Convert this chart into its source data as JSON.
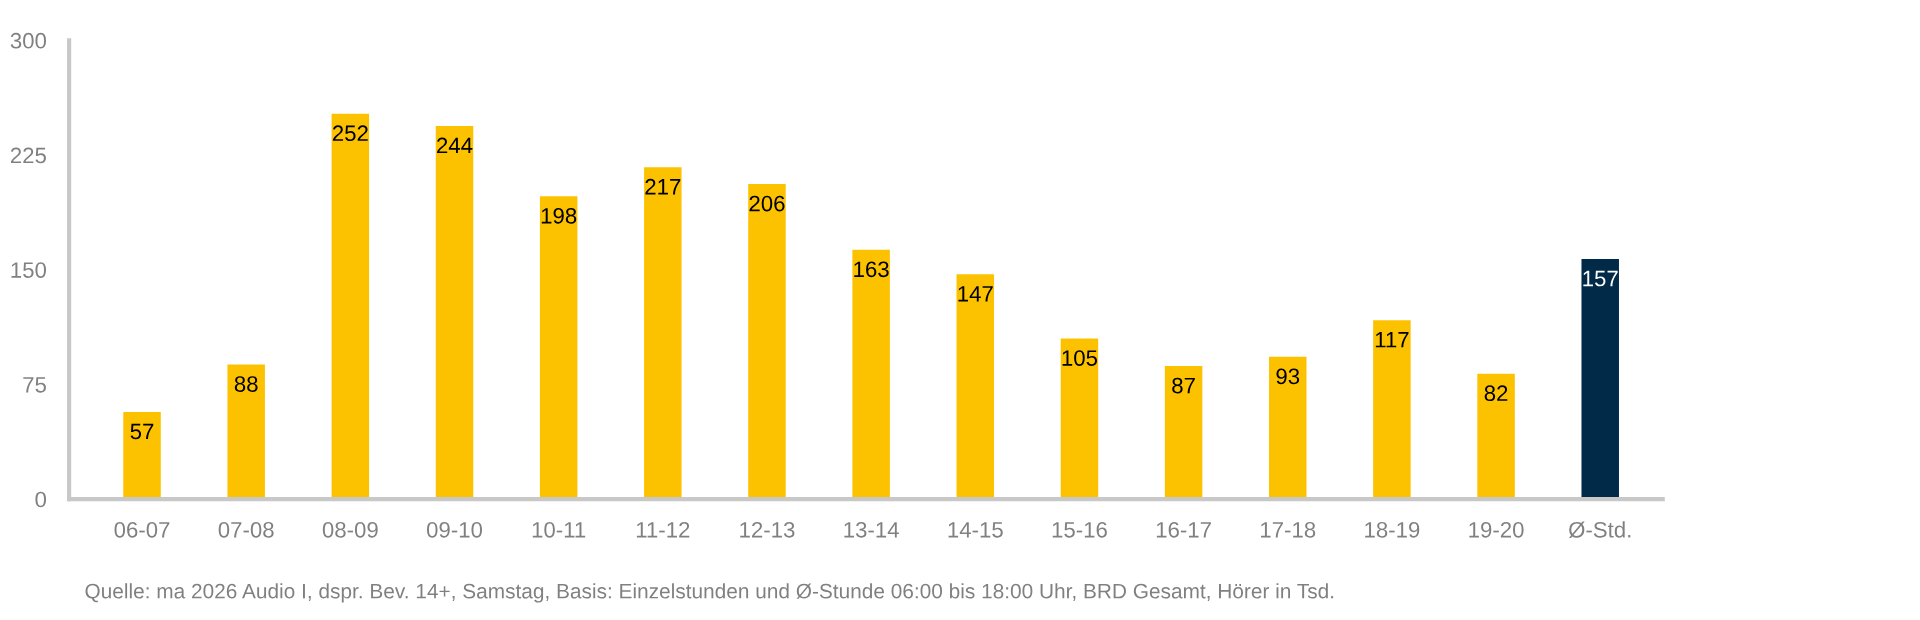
{
  "chart_data": {
    "type": "bar",
    "categories": [
      "06-07",
      "07-08",
      "08-09",
      "09-10",
      "10-11",
      "11-12",
      "12-13",
      "13-14",
      "14-15",
      "15-16",
      "16-17",
      "17-18",
      "18-19",
      "19-20",
      "Ø-Std."
    ],
    "values": [
      57,
      88,
      252,
      244,
      198,
      217,
      206,
      163,
      147,
      105,
      87,
      93,
      117,
      82,
      157
    ],
    "colors": [
      "#fcc200",
      "#fcc200",
      "#fcc200",
      "#fcc200",
      "#fcc200",
      "#fcc200",
      "#fcc200",
      "#fcc200",
      "#fcc200",
      "#fcc200",
      "#fcc200",
      "#fcc200",
      "#fcc200",
      "#fcc200",
      "#002a48"
    ],
    "ylim": [
      0,
      300
    ],
    "yticks": [
      0,
      75,
      150,
      225,
      300
    ],
    "grid": false,
    "data_labels": true,
    "annotations": [
      "Quelle: ma 2026 Audio I, dspr. Bev. 14+, Samstag, Basis: Einzelstunden und Ø-Stunde 06:00 bis 18:00 Uhr, BRD Gesamt, Hörer in Tsd."
    ]
  }
}
